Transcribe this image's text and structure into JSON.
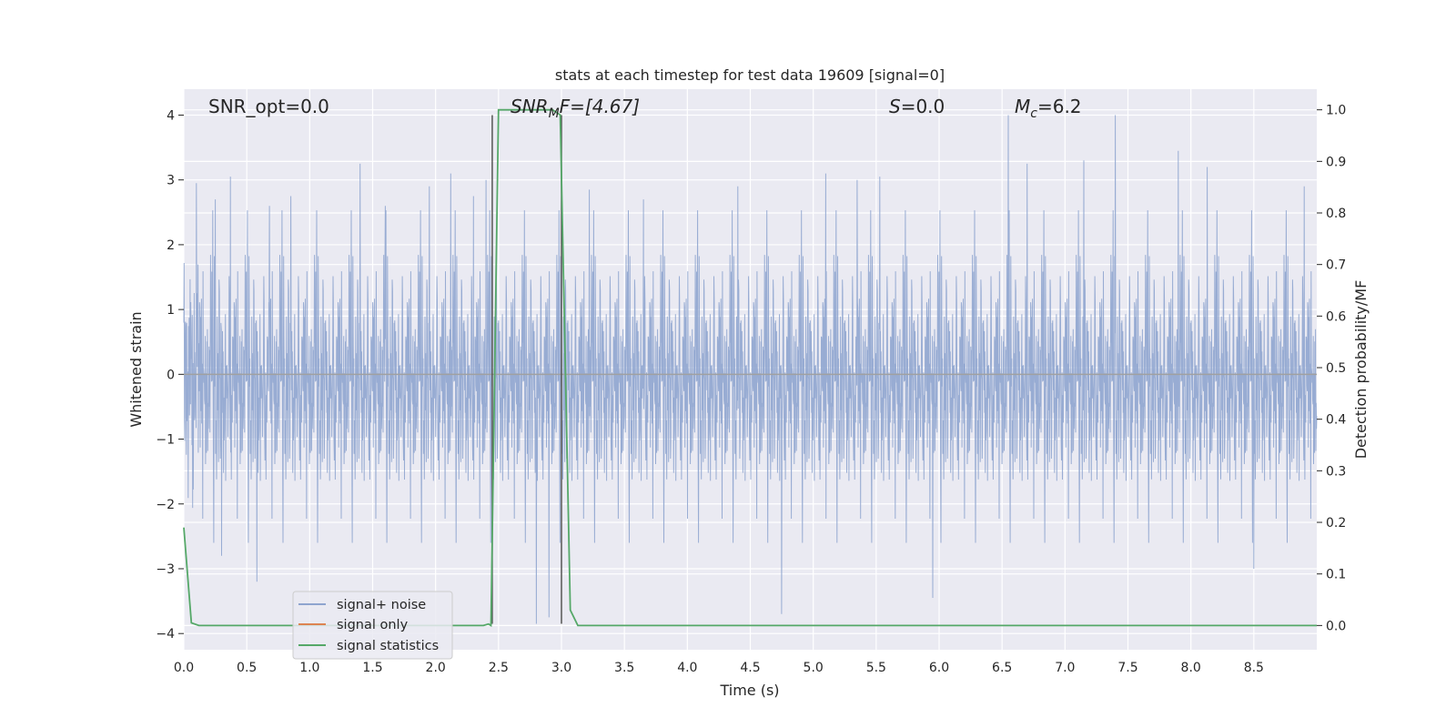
{
  "chart_data": {
    "type": "line",
    "title": "stats at each timestep for test data 19609 [signal=0]",
    "xlabel": "Time (s)",
    "ylabel": "Whitened strain",
    "ylabel_right": "Detection probability/MF",
    "xlim": [
      0.0,
      9.0
    ],
    "ylim": [
      -4.25,
      4.4
    ],
    "ylim_right": [
      -0.047,
      1.04
    ],
    "x_ticks": [
      "0.0",
      "0.5",
      "1.0",
      "1.5",
      "2.0",
      "2.5",
      "3.0",
      "3.5",
      "4.0",
      "4.5",
      "5.0",
      "5.5",
      "6.0",
      "6.5",
      "7.0",
      "7.5",
      "8.0",
      "8.5"
    ],
    "y_ticks": [
      "4",
      "3",
      "2",
      "1",
      "0",
      "−1",
      "−2",
      "−3",
      "−4"
    ],
    "y_ticks_right": [
      "1.0",
      "0.9",
      "0.8",
      "0.7",
      "0.6",
      "0.5",
      "0.4",
      "0.3",
      "0.2",
      "0.1",
      "0.0"
    ],
    "grid": true,
    "legend_position": "lower-left",
    "annotations": {
      "snr_opt": "SNR_opt=0.0",
      "snr_mf_main": "SNR",
      "snr_mf_sub": "M",
      "snr_mf_rest": "F=[4.67]",
      "s_main": "S",
      "s_rest": "=0.0",
      "mc_main": "M",
      "mc_sub": "c",
      "mc_rest": "=6.2"
    },
    "vertical_lines": [
      2.45,
      3.0
    ],
    "series": [
      {
        "name": "signal+ noise",
        "color": "#8fa5cf",
        "description_values": "whitened strain noise, approx. zero-mean, amplitude within about ±1.5 with spikes to 4.0 and -3.8",
        "spikes": [
          {
            "x": 0.1,
            "y": 2.95
          },
          {
            "x": 0.25,
            "y": 2.7
          },
          {
            "x": 0.3,
            "y": -2.8
          },
          {
            "x": 0.37,
            "y": 3.05
          },
          {
            "x": 0.58,
            "y": -3.2
          },
          {
            "x": 0.68,
            "y": 2.6
          },
          {
            "x": 0.85,
            "y": 2.75
          },
          {
            "x": 1.4,
            "y": 3.25
          },
          {
            "x": 1.6,
            "y": 2.6
          },
          {
            "x": 1.95,
            "y": 2.9
          },
          {
            "x": 2.12,
            "y": 3.1
          },
          {
            "x": 2.3,
            "y": 2.75
          },
          {
            "x": 2.4,
            "y": 3.0
          },
          {
            "x": 2.8,
            "y": -3.85
          },
          {
            "x": 2.9,
            "y": -3.75
          },
          {
            "x": 3.22,
            "y": 2.85
          },
          {
            "x": 3.65,
            "y": 2.7
          },
          {
            "x": 4.4,
            "y": 2.9
          },
          {
            "x": 4.75,
            "y": -3.7
          },
          {
            "x": 5.1,
            "y": 3.1
          },
          {
            "x": 5.35,
            "y": 3.0
          },
          {
            "x": 5.53,
            "y": 3.05
          },
          {
            "x": 5.95,
            "y": -3.45
          },
          {
            "x": 6.55,
            "y": 4.0
          },
          {
            "x": 6.7,
            "y": 3.25
          },
          {
            "x": 7.15,
            "y": 3.3
          },
          {
            "x": 7.4,
            "y": 4.0
          },
          {
            "x": 7.9,
            "y": 3.45
          },
          {
            "x": 8.13,
            "y": 3.2
          },
          {
            "x": 8.5,
            "y": -3.0
          },
          {
            "x": 8.9,
            "y": 2.9
          }
        ]
      },
      {
        "name": "signal only",
        "color": "#dd8452",
        "x": [
          0.0,
          9.0
        ],
        "y": [
          0.0,
          0.0
        ]
      },
      {
        "name": "signal statistics",
        "color": "#55a868",
        "axis": "right",
        "x": [
          0.0,
          0.06,
          0.12,
          2.38,
          2.42,
          2.44,
          2.5,
          2.75,
          2.93,
          2.99,
          3.07,
          3.13,
          9.0
        ],
        "y": [
          0.19,
          0.005,
          0.0,
          0.0,
          0.003,
          0.0,
          1.0,
          1.0,
          1.0,
          0.99,
          0.03,
          0.0,
          0.0
        ]
      }
    ]
  }
}
